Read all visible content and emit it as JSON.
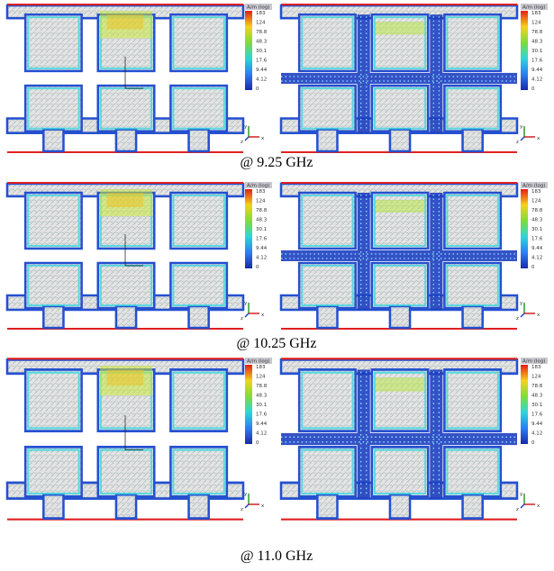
{
  "captions": [
    "@ 9.25 GHz",
    "@ 10.25 GHz",
    "@ 11.0 GHz"
  ],
  "colorbar": {
    "title": "A/m (log)",
    "labels": [
      "183",
      "124",
      "78.8",
      "48.3",
      "30.1",
      "17.6",
      "9.44",
      "4.12",
      "0"
    ]
  },
  "triad": [
    "y",
    "x",
    "z"
  ]
}
